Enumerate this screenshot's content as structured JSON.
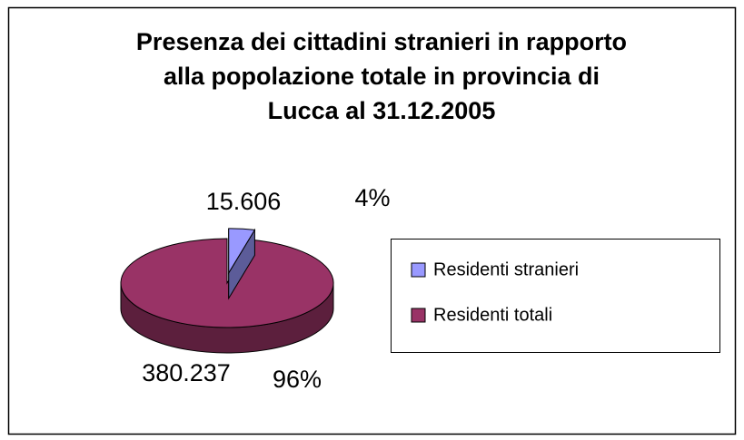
{
  "chart_data": {
    "type": "pie",
    "title": [
      "Presenza dei cittadini stranieri in rapporto",
      "alla popolazione totale in provincia di",
      "Lucca al 31.12.2005"
    ],
    "categories": [
      "Residenti stranieri",
      "Residenti totali"
    ],
    "values": [
      15606,
      380237
    ],
    "value_labels": [
      "15.606",
      "380.237"
    ],
    "percentages": [
      4,
      96
    ],
    "percentage_labels": [
      "4%",
      "96%"
    ],
    "colors": [
      "#9999ff",
      "#993366"
    ],
    "side_colors": [
      "#5c5c99",
      "#5c1f3d"
    ],
    "legend": "right"
  }
}
